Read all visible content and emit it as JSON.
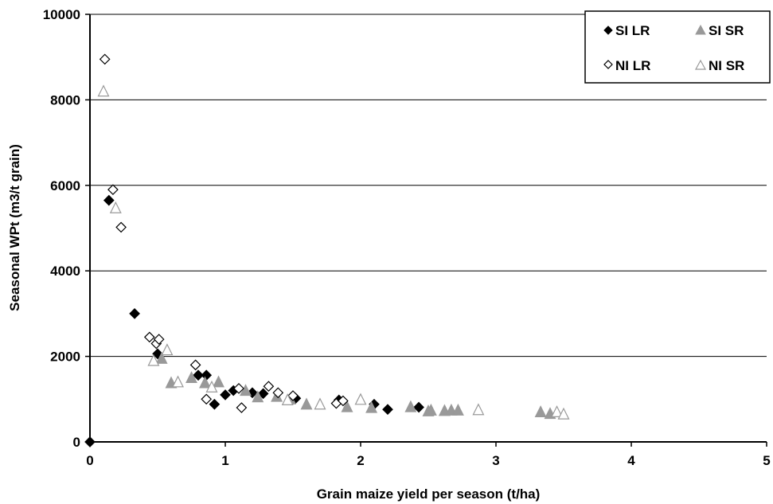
{
  "chart_data": {
    "type": "scatter",
    "title": "",
    "xlabel": "Grain maize yield per season (t/ha)",
    "ylabel": "Seasonal WPt (m3/t grain)",
    "xlim": [
      0,
      5
    ],
    "ylim": [
      0,
      10000
    ],
    "x_ticks": [
      "0",
      "1",
      "2",
      "3",
      "4",
      "5"
    ],
    "y_ticks": [
      "0",
      "2000",
      "4000",
      "6000",
      "8000",
      "10000"
    ],
    "x_tick_values": [
      0,
      1,
      2,
      3,
      4,
      5
    ],
    "y_tick_values": [
      0,
      2000,
      4000,
      6000,
      8000,
      10000
    ],
    "grid": "horizontal major gridlines",
    "legend_position": "top-right",
    "series": [
      {
        "name": "SI LR",
        "marker": "diamond",
        "fill": "#000000",
        "stroke": "#000000",
        "points": [
          {
            "x": 0.0,
            "y": 0
          },
          {
            "x": 0.14,
            "y": 5650
          },
          {
            "x": 0.33,
            "y": 3000
          },
          {
            "x": 0.5,
            "y": 2060
          },
          {
            "x": 0.8,
            "y": 1560
          },
          {
            "x": 0.86,
            "y": 1560
          },
          {
            "x": 0.92,
            "y": 880
          },
          {
            "x": 1.0,
            "y": 1100
          },
          {
            "x": 1.06,
            "y": 1200
          },
          {
            "x": 1.2,
            "y": 1150
          },
          {
            "x": 1.28,
            "y": 1130
          },
          {
            "x": 1.52,
            "y": 1020
          },
          {
            "x": 1.84,
            "y": 980
          },
          {
            "x": 2.1,
            "y": 880
          },
          {
            "x": 2.2,
            "y": 760
          },
          {
            "x": 2.43,
            "y": 810
          }
        ]
      },
      {
        "name": "SI SR",
        "marker": "triangle",
        "fill": "#999999",
        "stroke": "#999999",
        "points": [
          {
            "x": 0.53,
            "y": 1950
          },
          {
            "x": 0.6,
            "y": 1380
          },
          {
            "x": 0.75,
            "y": 1500
          },
          {
            "x": 0.85,
            "y": 1380
          },
          {
            "x": 0.95,
            "y": 1400
          },
          {
            "x": 1.15,
            "y": 1200
          },
          {
            "x": 1.24,
            "y": 1050
          },
          {
            "x": 1.38,
            "y": 1060
          },
          {
            "x": 1.48,
            "y": 1000
          },
          {
            "x": 1.6,
            "y": 880
          },
          {
            "x": 1.9,
            "y": 820
          },
          {
            "x": 2.08,
            "y": 800
          },
          {
            "x": 2.37,
            "y": 820
          },
          {
            "x": 2.5,
            "y": 720
          },
          {
            "x": 2.52,
            "y": 740
          },
          {
            "x": 2.62,
            "y": 730
          },
          {
            "x": 2.67,
            "y": 740
          },
          {
            "x": 2.72,
            "y": 740
          },
          {
            "x": 3.33,
            "y": 700
          },
          {
            "x": 3.4,
            "y": 660
          }
        ]
      },
      {
        "name": "NI LR",
        "marker": "diamond",
        "fill": "#ffffff",
        "stroke": "#000000",
        "points": [
          {
            "x": 0.11,
            "y": 8950
          },
          {
            "x": 0.17,
            "y": 5900
          },
          {
            "x": 0.23,
            "y": 5020
          },
          {
            "x": 0.44,
            "y": 2450
          },
          {
            "x": 0.49,
            "y": 2300
          },
          {
            "x": 0.51,
            "y": 2400
          },
          {
            "x": 0.78,
            "y": 1800
          },
          {
            "x": 0.86,
            "y": 1000
          },
          {
            "x": 1.1,
            "y": 1250
          },
          {
            "x": 1.12,
            "y": 800
          },
          {
            "x": 1.32,
            "y": 1300
          },
          {
            "x": 1.39,
            "y": 1150
          },
          {
            "x": 1.5,
            "y": 1080
          },
          {
            "x": 1.82,
            "y": 900
          },
          {
            "x": 1.87,
            "y": 960
          }
        ]
      },
      {
        "name": "NI SR",
        "marker": "triangle",
        "fill": "#ffffff",
        "stroke": "#999999",
        "points": [
          {
            "x": 0.1,
            "y": 8200
          },
          {
            "x": 0.19,
            "y": 5470
          },
          {
            "x": 0.47,
            "y": 1900
          },
          {
            "x": 0.57,
            "y": 2150
          },
          {
            "x": 0.65,
            "y": 1400
          },
          {
            "x": 0.9,
            "y": 1280
          },
          {
            "x": 1.46,
            "y": 980
          },
          {
            "x": 1.7,
            "y": 880
          },
          {
            "x": 2.0,
            "y": 990
          },
          {
            "x": 2.87,
            "y": 750
          },
          {
            "x": 3.45,
            "y": 700
          },
          {
            "x": 3.5,
            "y": 650
          }
        ]
      }
    ]
  }
}
